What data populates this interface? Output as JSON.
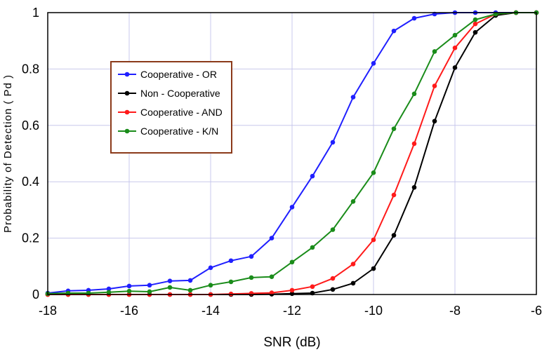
{
  "chart_data": {
    "type": "line",
    "title": "",
    "xlabel": "SNR (dB)",
    "ylabel": "Probability of Detection ( Pd )",
    "xlim": [
      -18,
      -6
    ],
    "ylim": [
      0,
      1
    ],
    "xticks": [
      -18,
      -16,
      -14,
      -12,
      -10,
      -8,
      -6
    ],
    "yticks": [
      0,
      0.2,
      0.4,
      0.6,
      0.8,
      1
    ],
    "x": [
      -18,
      -17.5,
      -17,
      -16.5,
      -16,
      -15.5,
      -15,
      -14.5,
      -14,
      -13.5,
      -13,
      -12.5,
      -12,
      -11.5,
      -11,
      -10.5,
      -10,
      -9.5,
      -9,
      -8.5,
      -8,
      -7.5,
      -7,
      -6.5,
      -6
    ],
    "grid": true,
    "legend_position": "upper-left",
    "series": [
      {
        "name": "Cooperative - OR",
        "color": "#1f1fff",
        "values": [
          0.005,
          0.013,
          0.015,
          0.02,
          0.03,
          0.033,
          0.048,
          0.05,
          0.095,
          0.12,
          0.135,
          0.2,
          0.31,
          0.42,
          0.54,
          0.7,
          0.82,
          0.935,
          0.98,
          0.995,
          1.0,
          1.0,
          1.0,
          1.0,
          1.0
        ]
      },
      {
        "name": "Non - Cooperative",
        "color": "#000000",
        "values": [
          0,
          0,
          0,
          0,
          0,
          0,
          0,
          0,
          0,
          0,
          0,
          0.001,
          0.003,
          0.005,
          0.018,
          0.04,
          0.092,
          0.21,
          0.38,
          0.615,
          0.805,
          0.93,
          0.99,
          1.0,
          1.0
        ]
      },
      {
        "name": "Cooperative - AND",
        "color": "#ff1a1a",
        "values": [
          0,
          0,
          0,
          0,
          0,
          0,
          0,
          0,
          0,
          0.002,
          0.004,
          0.006,
          0.015,
          0.028,
          0.057,
          0.108,
          0.194,
          0.353,
          0.535,
          0.74,
          0.875,
          0.96,
          0.995,
          1.0,
          1.0
        ]
      },
      {
        "name": "Cooperative - K/N",
        "color": "#1a8c1a",
        "values": [
          0.003,
          0.005,
          0.005,
          0.008,
          0.012,
          0.01,
          0.025,
          0.015,
          0.033,
          0.045,
          0.06,
          0.063,
          0.115,
          0.167,
          0.23,
          0.33,
          0.432,
          0.588,
          0.712,
          0.862,
          0.92,
          0.975,
          0.995,
          1.0,
          1.0
        ]
      }
    ]
  }
}
